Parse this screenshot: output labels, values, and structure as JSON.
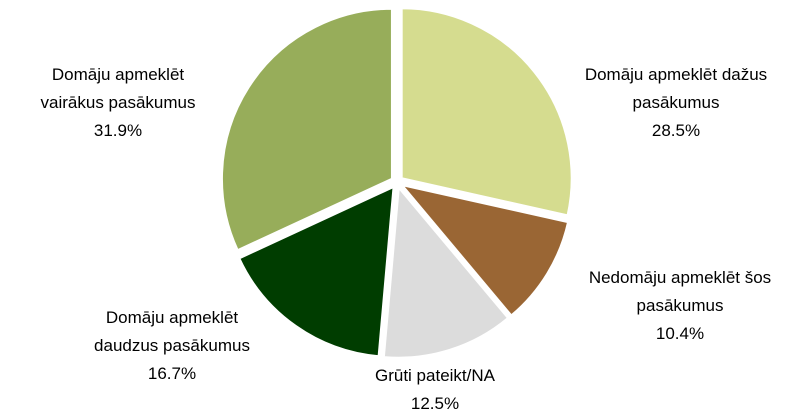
{
  "chart_data": {
    "type": "pie",
    "categories": [
      "Domāju apmeklēt dažus pasākumus",
      "Nedomāju apmeklēt šos pasākumus",
      "Grūti pateikt/NA",
      "Domāju apmeklēt daudzus pasākumus",
      "Domāju apmeklēt vairākus pasākumus"
    ],
    "values": [
      28.5,
      10.4,
      12.5,
      16.7,
      31.9
    ],
    "value_labels": [
      "28.5%",
      "10.4%",
      "12.5%",
      "16.7%",
      "31.9%"
    ],
    "colors": [
      "#d5dc8f",
      "#9a6634",
      "#dcdcdc",
      "#003d00",
      "#97ad5a"
    ]
  }
}
